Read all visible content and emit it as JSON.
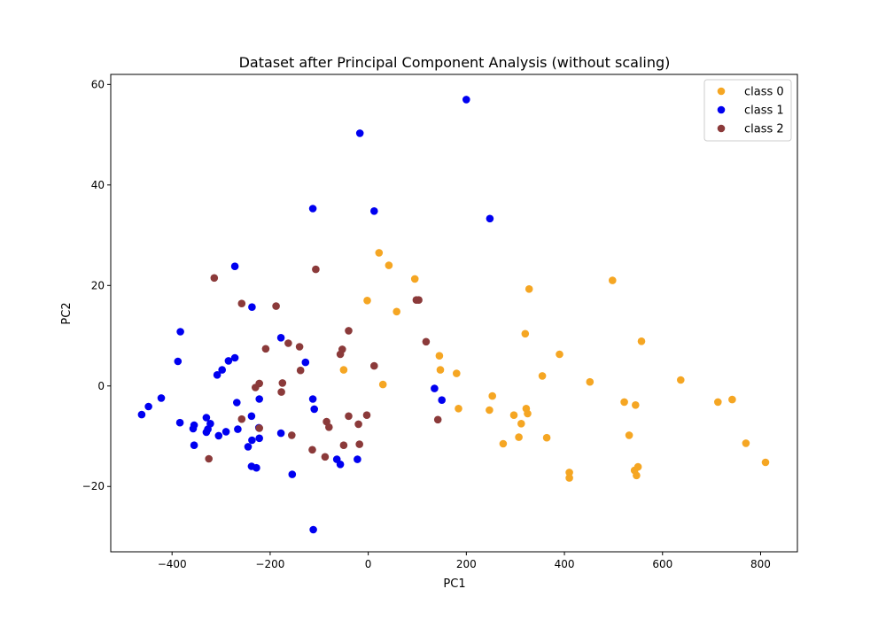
{
  "chart_data": {
    "type": "scatter",
    "title": "Dataset after Principal Component Analysis (without scaling)",
    "xlabel": "PC1",
    "ylabel": "PC2",
    "xlim": [
      -525,
      875
    ],
    "ylim": [
      -33,
      62
    ],
    "xticks": [
      -400,
      -200,
      0,
      200,
      400,
      600,
      800
    ],
    "yticks": [
      -20,
      0,
      20,
      40,
      60
    ],
    "xtick_labels": [
      "−400",
      "−200",
      "0",
      "200",
      "400",
      "600",
      "800"
    ],
    "ytick_labels": [
      "−20",
      "0",
      "20",
      "40",
      "60"
    ],
    "grid": false,
    "legend_position": "top-right",
    "series": [
      {
        "name": "class 0",
        "color": "#f5a623",
        "points": [
          [
            22,
            26.5
          ],
          [
            42,
            24
          ],
          [
            95,
            21.3
          ],
          [
            -2,
            17
          ],
          [
            58,
            14.8
          ],
          [
            328,
            19.3
          ],
          [
            498,
            21
          ],
          [
            320,
            10.4
          ],
          [
            557,
            8.9
          ],
          [
            390,
            6.3
          ],
          [
            -50,
            3.2
          ],
          [
            145,
            6
          ],
          [
            147,
            3.2
          ],
          [
            180,
            2.5
          ],
          [
            355,
            2
          ],
          [
            452,
            0.8
          ],
          [
            637,
            1.2
          ],
          [
            30,
            0.3
          ],
          [
            253,
            -2
          ],
          [
            522,
            -3.2
          ],
          [
            545,
            -3.8
          ],
          [
            713,
            -3.2
          ],
          [
            742,
            -2.7
          ],
          [
            247,
            -4.8
          ],
          [
            184,
            -4.5
          ],
          [
            322,
            -4.5
          ],
          [
            325,
            -5.5
          ],
          [
            297,
            -5.8
          ],
          [
            312,
            -7.5
          ],
          [
            275,
            -11.5
          ],
          [
            307,
            -10.2
          ],
          [
            364,
            -10.3
          ],
          [
            532,
            -9.8
          ],
          [
            770,
            -11.4
          ],
          [
            810,
            -15.2
          ],
          [
            410,
            -17.2
          ],
          [
            410,
            -18.3
          ],
          [
            543,
            -16.8
          ],
          [
            550,
            -16.1
          ],
          [
            547,
            -17.8
          ]
        ]
      },
      {
        "name": "class 1",
        "color": "#0000f0",
        "points": [
          [
            200,
            57
          ],
          [
            -17,
            50.3
          ],
          [
            -113,
            35.3
          ],
          [
            12,
            34.8
          ],
          [
            248,
            33.3
          ],
          [
            -272,
            23.8
          ],
          [
            -237,
            15.7
          ],
          [
            -383,
            10.8
          ],
          [
            -178,
            9.6
          ],
          [
            -388,
            4.9
          ],
          [
            -285,
            5
          ],
          [
            -272,
            5.6
          ],
          [
            -128,
            4.7
          ],
          [
            -298,
            3.2
          ],
          [
            -308,
            2.2
          ],
          [
            -422,
            -2.4
          ],
          [
            -268,
            -3.3
          ],
          [
            -222,
            -2.6
          ],
          [
            -113,
            -2.6
          ],
          [
            135,
            -0.5
          ],
          [
            150,
            -2.8
          ],
          [
            -448,
            -4.1
          ],
          [
            -462,
            -5.7
          ],
          [
            -330,
            -6.3
          ],
          [
            -238,
            -6
          ],
          [
            -110,
            -4.6
          ],
          [
            -384,
            -7.3
          ],
          [
            -355,
            -7.8
          ],
          [
            -322,
            -7.5
          ],
          [
            -357,
            -8.5
          ],
          [
            -327,
            -8.6
          ],
          [
            -330,
            -9.2
          ],
          [
            -266,
            -8.6
          ],
          [
            -290,
            -9.1
          ],
          [
            -305,
            -9.9
          ],
          [
            -223,
            -8.3
          ],
          [
            -178,
            -9.4
          ],
          [
            -222,
            -10.4
          ],
          [
            -237,
            -10.8
          ],
          [
            -355,
            -11.8
          ],
          [
            -245,
            -12.1
          ],
          [
            -64,
            -14.6
          ],
          [
            -22,
            -14.6
          ],
          [
            -238,
            -16
          ],
          [
            -228,
            -16.3
          ],
          [
            -57,
            -15.6
          ],
          [
            -155,
            -17.6
          ],
          [
            -112,
            -28.6
          ]
        ]
      },
      {
        "name": "class 2",
        "color": "#8b3a3a",
        "points": [
          [
            -314,
            21.5
          ],
          [
            -107,
            23.2
          ],
          [
            -258,
            16.4
          ],
          [
            -188,
            15.9
          ],
          [
            103,
            17.1
          ],
          [
            98,
            17.1
          ],
          [
            -40,
            11
          ],
          [
            -163,
            8.5
          ],
          [
            -140,
            7.8
          ],
          [
            -53,
            7.3
          ],
          [
            -57,
            6.3
          ],
          [
            -209,
            7.4
          ],
          [
            118,
            8.8
          ],
          [
            -175,
            0.6
          ],
          [
            -177,
            -1.2
          ],
          [
            -138,
            3.1
          ],
          [
            12,
            4
          ],
          [
            -222,
            0.5
          ],
          [
            -230,
            -0.3
          ],
          [
            -258,
            -6.6
          ],
          [
            -85,
            -7.1
          ],
          [
            -40,
            -6
          ],
          [
            -3,
            -5.8
          ],
          [
            -80,
            -8.2
          ],
          [
            -20,
            -7.6
          ],
          [
            -222,
            -8.4
          ],
          [
            -156,
            -9.8
          ],
          [
            142,
            -6.7
          ],
          [
            -50,
            -11.8
          ],
          [
            -18,
            -11.6
          ],
          [
            -114,
            -12.7
          ],
          [
            -88,
            -14.1
          ],
          [
            -325,
            -14.5
          ]
        ]
      }
    ]
  }
}
